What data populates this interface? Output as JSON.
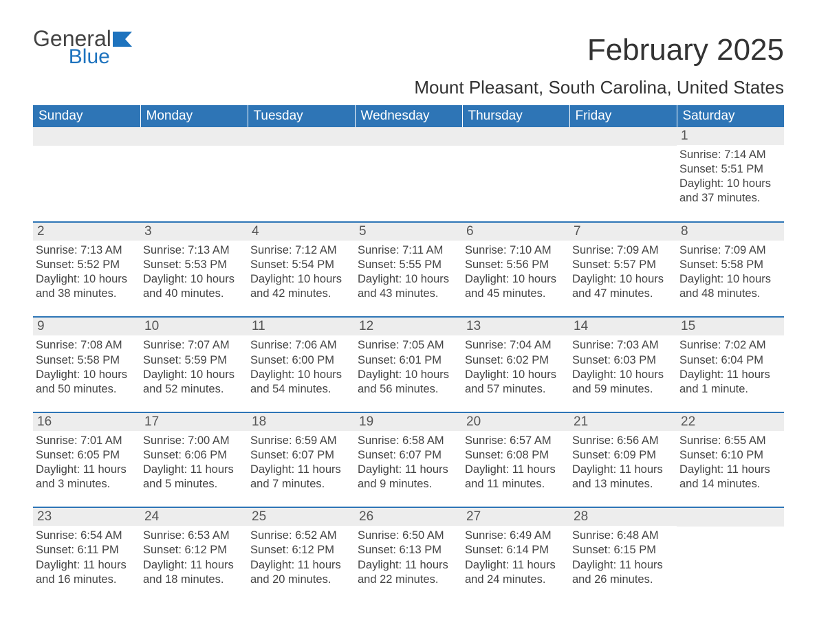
{
  "brand": {
    "word1": "General",
    "word2": "Blue",
    "accent_color": "#1e73be"
  },
  "title": "February 2025",
  "location": "Mount Pleasant, South Carolina, United States",
  "theme": {
    "header_bg": "#2e75b6",
    "header_fg": "#ffffff",
    "daynum_bg": "#ededed",
    "text_color": "#444444",
    "rule_color": "#2e75b6"
  },
  "weekdays": [
    "Sunday",
    "Monday",
    "Tuesday",
    "Wednesday",
    "Thursday",
    "Friday",
    "Saturday"
  ],
  "labels": {
    "sunrise": "Sunrise:",
    "sunset": "Sunset:",
    "daylight": "Daylight:"
  },
  "weeks": [
    [
      null,
      null,
      null,
      null,
      null,
      null,
      {
        "day": "1",
        "sunrise": "7:14 AM",
        "sunset": "5:51 PM",
        "daylight": "10 hours and 37 minutes."
      }
    ],
    [
      {
        "day": "2",
        "sunrise": "7:13 AM",
        "sunset": "5:52 PM",
        "daylight": "10 hours and 38 minutes."
      },
      {
        "day": "3",
        "sunrise": "7:13 AM",
        "sunset": "5:53 PM",
        "daylight": "10 hours and 40 minutes."
      },
      {
        "day": "4",
        "sunrise": "7:12 AM",
        "sunset": "5:54 PM",
        "daylight": "10 hours and 42 minutes."
      },
      {
        "day": "5",
        "sunrise": "7:11 AM",
        "sunset": "5:55 PM",
        "daylight": "10 hours and 43 minutes."
      },
      {
        "day": "6",
        "sunrise": "7:10 AM",
        "sunset": "5:56 PM",
        "daylight": "10 hours and 45 minutes."
      },
      {
        "day": "7",
        "sunrise": "7:09 AM",
        "sunset": "5:57 PM",
        "daylight": "10 hours and 47 minutes."
      },
      {
        "day": "8",
        "sunrise": "7:09 AM",
        "sunset": "5:58 PM",
        "daylight": "10 hours and 48 minutes."
      }
    ],
    [
      {
        "day": "9",
        "sunrise": "7:08 AM",
        "sunset": "5:58 PM",
        "daylight": "10 hours and 50 minutes."
      },
      {
        "day": "10",
        "sunrise": "7:07 AM",
        "sunset": "5:59 PM",
        "daylight": "10 hours and 52 minutes."
      },
      {
        "day": "11",
        "sunrise": "7:06 AM",
        "sunset": "6:00 PM",
        "daylight": "10 hours and 54 minutes."
      },
      {
        "day": "12",
        "sunrise": "7:05 AM",
        "sunset": "6:01 PM",
        "daylight": "10 hours and 56 minutes."
      },
      {
        "day": "13",
        "sunrise": "7:04 AM",
        "sunset": "6:02 PM",
        "daylight": "10 hours and 57 minutes."
      },
      {
        "day": "14",
        "sunrise": "7:03 AM",
        "sunset": "6:03 PM",
        "daylight": "10 hours and 59 minutes."
      },
      {
        "day": "15",
        "sunrise": "7:02 AM",
        "sunset": "6:04 PM",
        "daylight": "11 hours and 1 minute."
      }
    ],
    [
      {
        "day": "16",
        "sunrise": "7:01 AM",
        "sunset": "6:05 PM",
        "daylight": "11 hours and 3 minutes."
      },
      {
        "day": "17",
        "sunrise": "7:00 AM",
        "sunset": "6:06 PM",
        "daylight": "11 hours and 5 minutes."
      },
      {
        "day": "18",
        "sunrise": "6:59 AM",
        "sunset": "6:07 PM",
        "daylight": "11 hours and 7 minutes."
      },
      {
        "day": "19",
        "sunrise": "6:58 AM",
        "sunset": "6:07 PM",
        "daylight": "11 hours and 9 minutes."
      },
      {
        "day": "20",
        "sunrise": "6:57 AM",
        "sunset": "6:08 PM",
        "daylight": "11 hours and 11 minutes."
      },
      {
        "day": "21",
        "sunrise": "6:56 AM",
        "sunset": "6:09 PM",
        "daylight": "11 hours and 13 minutes."
      },
      {
        "day": "22",
        "sunrise": "6:55 AM",
        "sunset": "6:10 PM",
        "daylight": "11 hours and 14 minutes."
      }
    ],
    [
      {
        "day": "23",
        "sunrise": "6:54 AM",
        "sunset": "6:11 PM",
        "daylight": "11 hours and 16 minutes."
      },
      {
        "day": "24",
        "sunrise": "6:53 AM",
        "sunset": "6:12 PM",
        "daylight": "11 hours and 18 minutes."
      },
      {
        "day": "25",
        "sunrise": "6:52 AM",
        "sunset": "6:12 PM",
        "daylight": "11 hours and 20 minutes."
      },
      {
        "day": "26",
        "sunrise": "6:50 AM",
        "sunset": "6:13 PM",
        "daylight": "11 hours and 22 minutes."
      },
      {
        "day": "27",
        "sunrise": "6:49 AM",
        "sunset": "6:14 PM",
        "daylight": "11 hours and 24 minutes."
      },
      {
        "day": "28",
        "sunrise": "6:48 AM",
        "sunset": "6:15 PM",
        "daylight": "11 hours and 26 minutes."
      },
      null
    ]
  ]
}
